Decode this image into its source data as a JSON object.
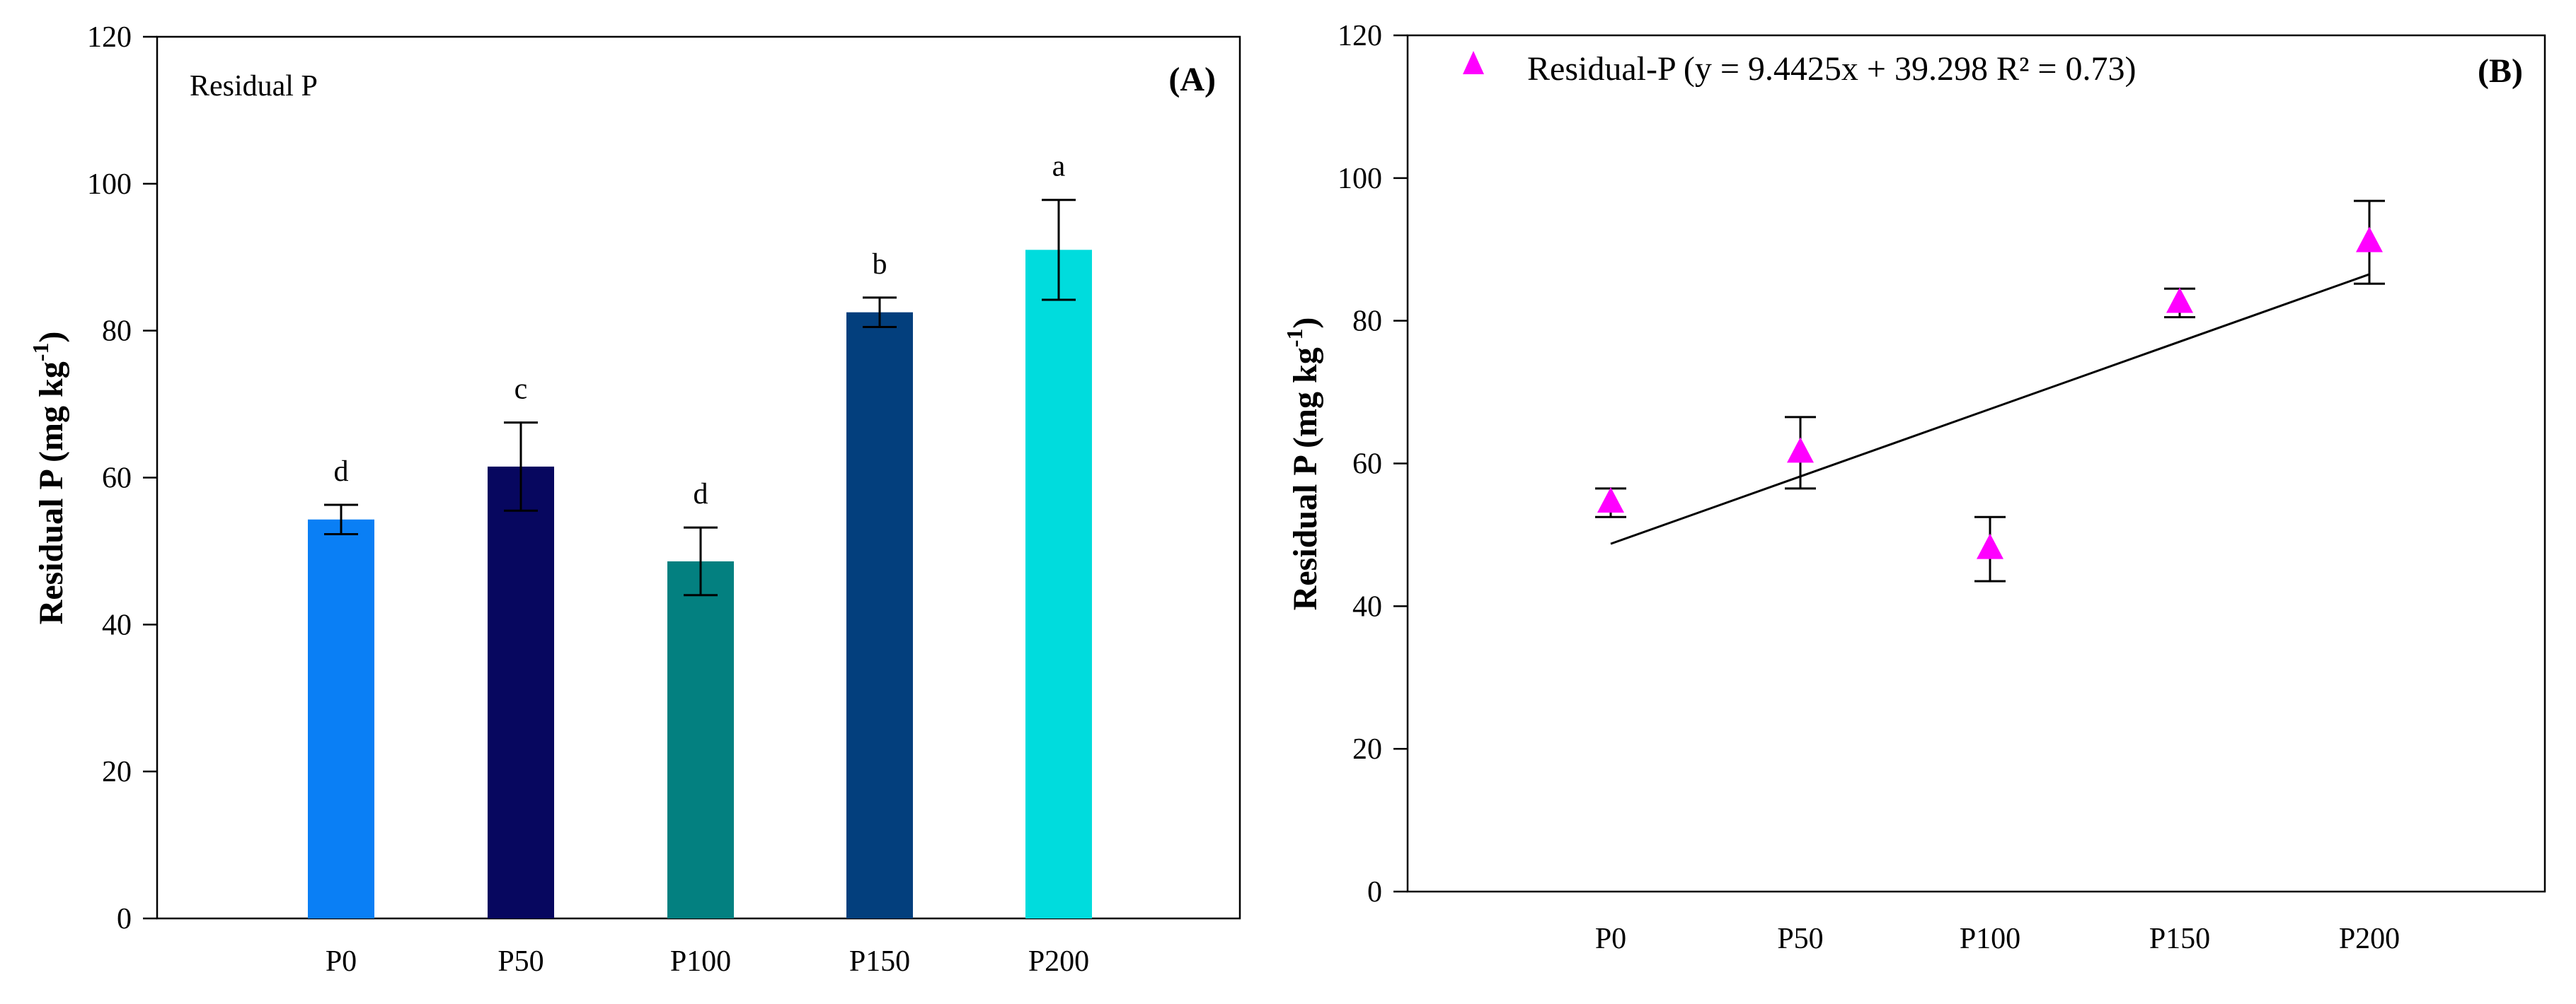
{
  "chart_data": [
    {
      "type": "bar",
      "panel_label": "(A)",
      "title": "Residual P",
      "ylabel_main": "Residual P (mg kg",
      "ylabel_sup": "-1",
      "ylabel_close": ")",
      "categories": [
        "P0",
        "P50",
        "P100",
        "P150",
        "P200"
      ],
      "values": [
        54.3,
        61.5,
        48.6,
        82.5,
        91.0
      ],
      "errors": [
        2.0,
        6.0,
        4.6,
        2.0,
        6.8
      ],
      "letters": [
        "d",
        "c",
        "d",
        "b",
        "a"
      ],
      "colors": [
        "#0A7FF5",
        "#07075F",
        "#038080",
        "#033F7D",
        "#00DCDD"
      ],
      "ylim": [
        0,
        120
      ],
      "yticks": [
        0,
        20,
        40,
        60,
        80,
        100,
        120
      ]
    },
    {
      "type": "scatter",
      "panel_label": "(B)",
      "legend": "Residual-P  (y = 9.4425x + 39.298 R² = 0.73)",
      "ylabel_main": "Residual P (mg kg",
      "ylabel_sup": "-1",
      "ylabel_close": ")",
      "categories": [
        "P0",
        "P50",
        "P100",
        "P150",
        "P200"
      ],
      "values": [
        54.5,
        61.5,
        48.0,
        82.5,
        91.0
      ],
      "errors": [
        2.0,
        5.0,
        4.5,
        2.0,
        5.8
      ],
      "marker_color": "#FF00FF",
      "fit": {
        "slope": 9.4425,
        "intercept": 39.298,
        "r2": 0.73
      },
      "ylim": [
        0,
        120
      ],
      "yticks": [
        0,
        20,
        40,
        60,
        80,
        100,
        120
      ]
    }
  ]
}
